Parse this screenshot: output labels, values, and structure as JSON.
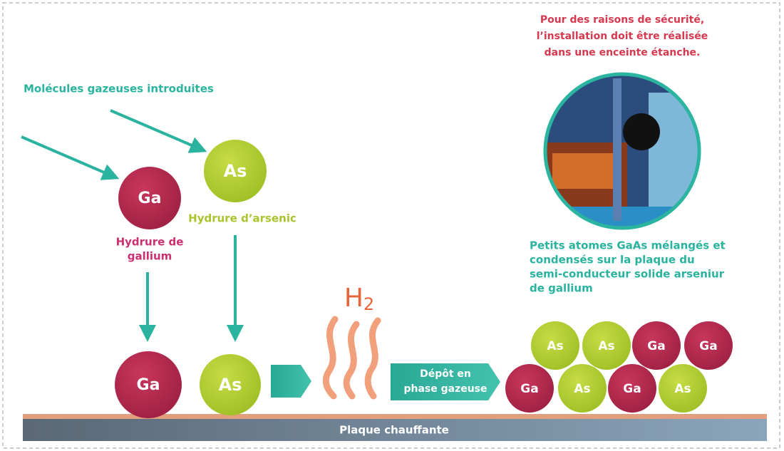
{
  "safety_note": [
    "Pour des raisons de sécurité,",
    "l’installation doit être réalisée",
    "dans une enceinte étanche."
  ],
  "intro_label": "Molécules gazeuses introduites",
  "incoming_molecules": [
    {
      "symbol": "Ga",
      "label": [
        "Hydrure de",
        "gallium"
      ]
    },
    {
      "symbol": "As",
      "label": [
        "Hydrure d’arsenic"
      ]
    }
  ],
  "landed_atoms": [
    "Ga",
    "As"
  ],
  "byproduct": {
    "symbol": "H",
    "subscript": "2"
  },
  "deposit_step": [
    "Dépôt en",
    "phase gazeuse"
  ],
  "result_note": [
    "Petits atomes GaAs mélangés et",
    "condensés sur la plaque du",
    "semi-conducteur solide arseniur",
    "de gallium"
  ],
  "deposited_atoms": [
    "As",
    "As",
    "Ga",
    "Ga",
    "Ga",
    "As",
    "Ga",
    "As"
  ],
  "plate_label": "Plaque chauffante"
}
